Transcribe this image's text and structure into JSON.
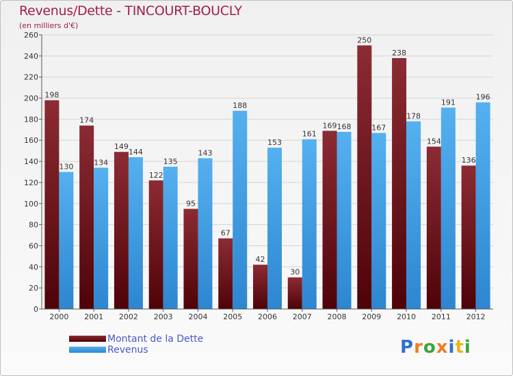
{
  "header": {
    "title": "Revenus/Dette - TINCOURT-BOUCLY",
    "subtitle": "(en milliers d'€)"
  },
  "legend": [
    {
      "label": "Montant de la Dette",
      "color": "#6b0d15"
    },
    {
      "label": "Revenus",
      "color": "#3f9ee8"
    }
  ],
  "logo": {
    "letters": [
      "P",
      "r",
      "o",
      "x",
      "i",
      "t",
      "i"
    ],
    "colors": [
      "#2f6fd1",
      "#f07c1e",
      "#3aa53a",
      "#f07c1e",
      "#2f6fd1",
      "#e8b41a",
      "#3aa53a"
    ]
  },
  "chart_data": {
    "type": "bar",
    "title": "Revenus/Dette - TINCOURT-BOUCLY",
    "ylabel": "(en milliers d'€)",
    "categories": [
      "2000",
      "2001",
      "2002",
      "2003",
      "2004",
      "2005",
      "2006",
      "2007",
      "2008",
      "2009",
      "2010",
      "2011",
      "2012"
    ],
    "series": [
      {
        "name": "Montant de la Dette",
        "color": "#6b0d15",
        "values": [
          198,
          174,
          149,
          122,
          95,
          67,
          42,
          30,
          169,
          250,
          238,
          154,
          136
        ]
      },
      {
        "name": "Revenus",
        "color": "#3f9ee8",
        "values": [
          130,
          134,
          144,
          135,
          143,
          188,
          153,
          161,
          168,
          167,
          178,
          191,
          196
        ]
      }
    ],
    "ylim": [
      0,
      260
    ],
    "yticks": [
      0,
      20,
      40,
      60,
      80,
      100,
      120,
      140,
      160,
      180,
      200,
      220,
      240,
      260
    ],
    "grid": true,
    "legend_position": "bottom-left"
  }
}
